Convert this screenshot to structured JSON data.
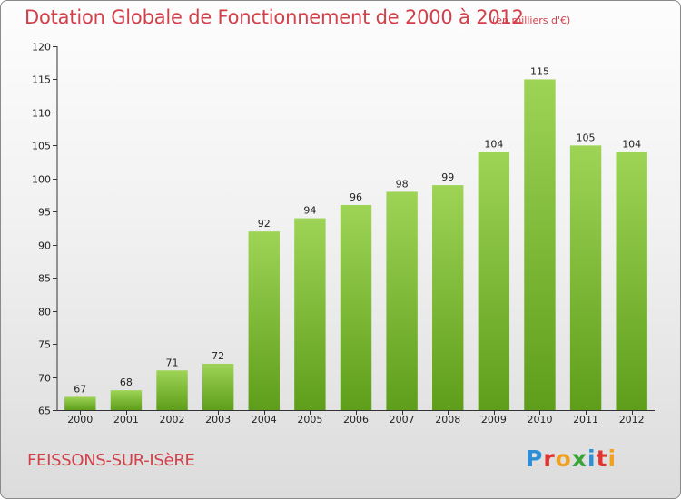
{
  "title": "Dotation Globale de Fonctionnement de 2000 à 2012",
  "unit": "(en milliers d'€)",
  "commune": "FEISSONS-SUR-ISèRE",
  "logo": {
    "text": "Proxiti",
    "letters": [
      {
        "char": "P",
        "color": "#2e8fd6"
      },
      {
        "char": "r",
        "color": "#e3332f"
      },
      {
        "char": "o",
        "color": "#f2a11f"
      },
      {
        "char": "x",
        "color": "#3aa536"
      },
      {
        "char": "i",
        "color": "#2e8fd6"
      },
      {
        "char": "t",
        "color": "#e3332f"
      },
      {
        "char": "i",
        "color": "#f2a11f"
      }
    ]
  },
  "colors": {
    "bar_top": "#9ed456",
    "bar_bottom": "#5e9e1a",
    "title": "#d2404a"
  },
  "chart_data": {
    "type": "bar",
    "categories": [
      "2000",
      "2001",
      "2002",
      "2003",
      "2004",
      "2005",
      "2006",
      "2007",
      "2008",
      "2009",
      "2010",
      "2011",
      "2012"
    ],
    "values": [
      67,
      68,
      71,
      72,
      92,
      94,
      96,
      98,
      99,
      104,
      115,
      105,
      104
    ],
    "ylim": [
      65,
      120
    ],
    "yticks": [
      65,
      70,
      75,
      80,
      85,
      90,
      95,
      100,
      105,
      110,
      115,
      120
    ],
    "grid": false,
    "data_labels": true
  }
}
